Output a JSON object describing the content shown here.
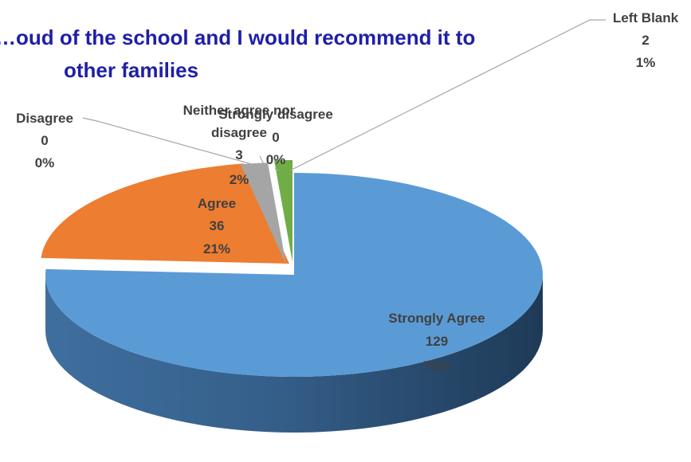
{
  "chart_data": {
    "type": "pie",
    "title_lines": [
      "…oud of the school and I would recommend it to",
      "other families"
    ],
    "categories": [
      "Strongly Agree",
      "Agree",
      "Disagree",
      "Neither agree nor disagree",
      "Strongly disagree",
      "Left  Blank"
    ],
    "values": [
      129,
      36,
      0,
      3,
      0,
      2
    ],
    "percent_labels": [
      "76%",
      "21%",
      "0%",
      "2%",
      "0%",
      "1%"
    ],
    "colors": [
      "#5b9bd5",
      "#ed7d31",
      "#c8c8c8",
      "#a5a5a5",
      "#ffc000",
      "#70ad47"
    ],
    "label_lines": [
      [
        "Strongly Agree",
        "129",
        "76%"
      ],
      [
        "Agree",
        "36",
        "21%"
      ],
      [
        "Disagree",
        "0",
        "0%"
      ],
      [
        "Neither agree nor",
        "disagree",
        "3",
        "2%"
      ],
      [
        "Strongly disagree",
        "0",
        "0%"
      ],
      [
        "Left  Blank",
        "2",
        "1%"
      ]
    ],
    "legend": "none",
    "style": "3d-exploded"
  }
}
